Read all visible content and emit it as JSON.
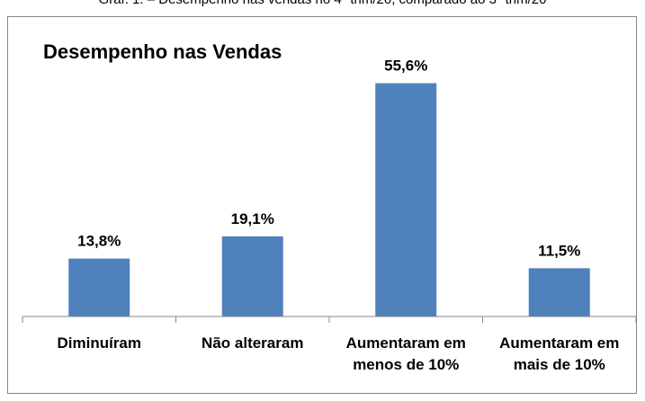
{
  "caption": "Gráf. 1. – Desempenho nas vendas no 4º trim/20, comparado ao 3º trim/20",
  "chart_data": {
    "type": "bar",
    "title": "Desempenho nas Vendas",
    "categories": [
      "Diminuíram",
      "Não alteraram",
      "Aumentaram em menos de 10%",
      "Aumentaram em mais de 10%"
    ],
    "values": [
      13.8,
      19.1,
      55.6,
      11.5
    ],
    "value_labels": [
      "13,8%",
      "19,1%",
      "55,6%",
      "11,5%"
    ],
    "color": "#4f81bd",
    "ylim": [
      0,
      60
    ]
  }
}
